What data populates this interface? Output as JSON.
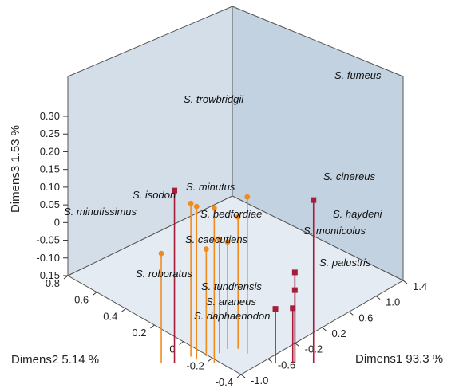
{
  "chart_data": {
    "type": "scatter",
    "subtype": "3d-scatter-with-drop-lines",
    "xlabel": "Dimens1 93.3 %",
    "ylabel": "Dimens2 5.14 %",
    "zlabel": "Dimens3 1.53 %",
    "xticks": [
      "-1.0",
      "-0.6",
      "-0.2",
      "0.2",
      "0.6",
      "1.0",
      "1.4"
    ],
    "yticks": [
      "-0.4",
      "-0.2",
      "0",
      "0.2",
      "0.4",
      "0.6",
      "0.8"
    ],
    "zticks": [
      "-0.15",
      "-0.10",
      "-0.05",
      "0",
      "0.05",
      "0.10",
      "0.15",
      "0.20",
      "0.25",
      "0.30"
    ],
    "xlim": [
      -1.0,
      1.4
    ],
    "ylim": [
      -0.4,
      0.8
    ],
    "zlim": [
      -0.15,
      0.3
    ],
    "colors": {
      "orange_group": "#f08c1e",
      "red_group": "#a41e3c",
      "wall": "#c9d7e4",
      "floor": "#e2eaf2"
    },
    "series": [
      {
        "marker": "circle",
        "color": "#f08c1e",
        "points": [
          {
            "label": "S. minutus",
            "x": -0.33,
            "y": 0.08,
            "z": 0.02
          },
          {
            "label": "S. isodon",
            "x": -0.52,
            "y": 0.11,
            "z": 0.01
          },
          {
            "label": "S. minutissimus",
            "x": -0.6,
            "y": 0.11,
            "z": 0.01
          },
          {
            "label": "S. bedfordiae",
            "x": -0.25,
            "y": -0.12,
            "z": 0.02
          },
          {
            "label": "S. caecutiens",
            "x": -0.38,
            "y": -0.12,
            "z": -0.05
          },
          {
            "label": "S. roboratus",
            "x": -0.65,
            "y": 0.3,
            "z": -0.1
          },
          {
            "label": "S. tundrensis",
            "x": -0.45,
            "y": -0.02,
            "z": -0.1
          },
          {
            "label": "S. araneus",
            "x": -0.45,
            "y": -0.08,
            "z": -0.12
          },
          {
            "label": "S. daphaenodon",
            "x": -0.5,
            "y": 0.05,
            "z": -0.12
          }
        ]
      },
      {
        "marker": "square",
        "color": "#a41e3c",
        "points": [
          {
            "label": "S. trowbridgii",
            "x": -0.08,
            "y": 0.5,
            "z": 0.18
          },
          {
            "label": "S. fumeus",
            "x": 1.2,
            "y": 0.15,
            "z": 0.22
          },
          {
            "label": "S. cinereus",
            "x": 1.13,
            "y": 0.25,
            "z": 0.03
          },
          {
            "label": "S. haydeni",
            "x": 1.13,
            "y": 0.25,
            "z": -0.02
          },
          {
            "label": "S. monticolus",
            "x": 1.05,
            "y": 0.35,
            "z": -0.06
          },
          {
            "label": "S. palustris",
            "x": 1.12,
            "y": 0.26,
            "z": -0.07
          }
        ]
      }
    ]
  }
}
